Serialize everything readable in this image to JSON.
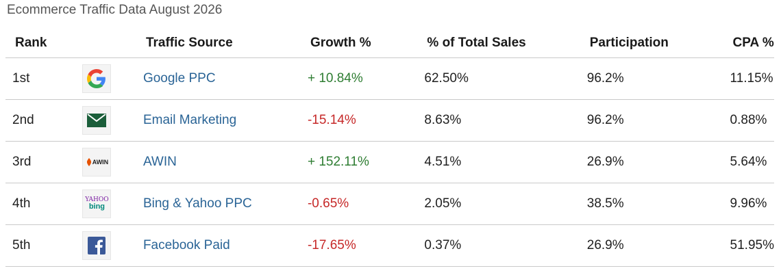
{
  "caption": "Ecommerce Traffic Data August 2026",
  "headers": {
    "rank": "Rank",
    "source": "Traffic Source",
    "growth": "Growth %",
    "sales": "% of Total Sales",
    "participation": "Participation",
    "cpa": "CPA %"
  },
  "rows": [
    {
      "rank": "1st",
      "icon": "google-logo-icon",
      "source": "Google PPC",
      "growth": "+ 10.84%",
      "growth_sign": "positive",
      "sales": "62.50%",
      "participation": "96.2%",
      "cpa": "11.15%"
    },
    {
      "rank": "2nd",
      "icon": "envelope-icon",
      "source": "Email Marketing",
      "growth": "-15.14%",
      "growth_sign": "negative",
      "sales": "8.63%",
      "participation": "96.2%",
      "cpa": "0.88%"
    },
    {
      "rank": "3rd",
      "icon": "awin-logo-icon",
      "logo_text": "AWIN",
      "source": "AWIN",
      "growth": "+ 152.11%",
      "growth_sign": "positive",
      "sales": "4.51%",
      "participation": "26.9%",
      "cpa": "5.64%"
    },
    {
      "rank": "4th",
      "icon": "bing-yahoo-logo-icon",
      "logo_text_top": "YAHOO",
      "logo_text_bottom": "bing",
      "source": "Bing & Yahoo PPC",
      "growth": "-0.65%",
      "growth_sign": "negative",
      "sales": "2.05%",
      "participation": "38.5%",
      "cpa": "9.96%"
    },
    {
      "rank": "5th",
      "icon": "facebook-logo-icon",
      "source": "Facebook Paid",
      "growth": "-17.65%",
      "growth_sign": "negative",
      "sales": "0.37%",
      "participation": "26.9%",
      "cpa": "51.95%"
    }
  ],
  "colors": {
    "link": "#2a6496",
    "positive": "#2e7d32",
    "negative": "#c62828"
  }
}
